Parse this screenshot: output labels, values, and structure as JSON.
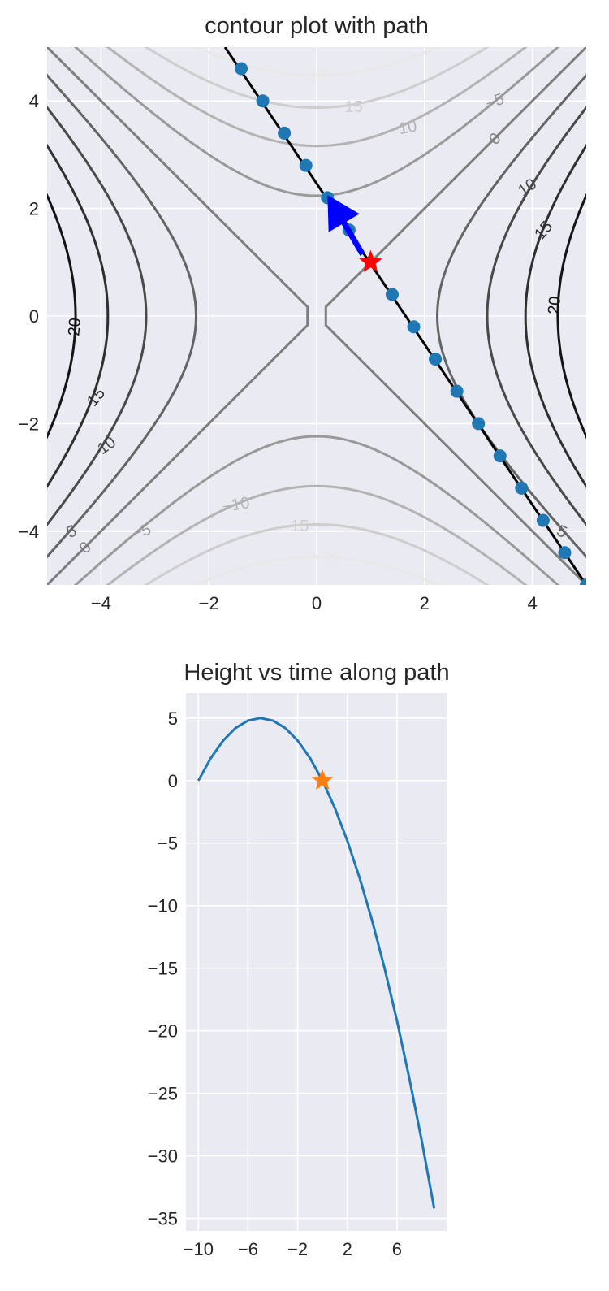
{
  "chart_data": [
    {
      "type": "contour",
      "title": "contour plot with path",
      "xlim": [
        -5,
        5
      ],
      "ylim": [
        -5,
        5
      ],
      "xticks": [
        -4,
        -2,
        0,
        2,
        4
      ],
      "yticks": [
        -4,
        -2,
        0,
        2,
        4
      ],
      "grid": true,
      "function": "z = x^2 - y^2 (saddle)",
      "levels": [
        -20,
        -15,
        -10,
        -5,
        0,
        5,
        10,
        15,
        20
      ],
      "contour_labels": [
        {
          "text": "20",
          "level": 20
        },
        {
          "text": "15",
          "level": 15
        },
        {
          "text": "10",
          "level": 10
        },
        {
          "text": "5",
          "level": 5
        },
        {
          "text": "0",
          "level": 0
        },
        {
          "text": "−5",
          "level": -5
        },
        {
          "text": "−10",
          "level": -10
        },
        {
          "text": "−15",
          "level": -15
        },
        {
          "text": "−20",
          "level": -20
        }
      ],
      "path_line": {
        "x": [
          -1.7,
          5.0
        ],
        "y": [
          5.0,
          -5.0
        ],
        "color": "#000000"
      },
      "path_points": {
        "x": [
          -1.4,
          -1.0,
          -0.6,
          -0.2,
          0.2,
          0.6,
          1.4,
          1.8,
          2.2,
          2.6,
          3.0,
          3.4,
          3.8,
          4.2,
          4.6,
          5.0
        ],
        "y": [
          4.6,
          4.0,
          3.4,
          2.8,
          2.2,
          1.6,
          0.4,
          -0.2,
          -0.8,
          -1.4,
          -2.0,
          -2.6,
          -3.2,
          -3.8,
          -4.4,
          -5.0
        ],
        "color": "#1f77b4"
      },
      "star": {
        "x": 1.0,
        "y": 1.0,
        "color": "#ff0000"
      },
      "arrow": {
        "from": [
          0.85,
          1.15
        ],
        "to": [
          0.2,
          2.25
        ],
        "color": "#0000ff"
      }
    },
    {
      "type": "line",
      "title": "Height vs time along path",
      "xlim": [
        -11,
        10
      ],
      "ylim": [
        -36,
        7
      ],
      "xticks": [
        -10,
        -6,
        -2,
        2,
        6
      ],
      "xtick_labels": [
        "−10",
        "−6",
        "−2",
        "2",
        "6"
      ],
      "yticks": [
        5,
        0,
        -5,
        -10,
        -15,
        -20,
        -25,
        -30,
        -35
      ],
      "ytick_labels": [
        "5",
        "0",
        "−5",
        "−10",
        "−15",
        "−20",
        "−25",
        "−30",
        "−35"
      ],
      "grid": true,
      "series": [
        {
          "color": "#1f77b4",
          "x": [
            -10,
            -9,
            -8,
            -7,
            -6,
            -5,
            -4,
            -3,
            -2,
            -1,
            0,
            1,
            2,
            3,
            4,
            5,
            6,
            7,
            8,
            9
          ],
          "y": [
            0,
            1.8,
            3.2,
            4.2,
            4.8,
            5.0,
            4.8,
            4.2,
            3.2,
            1.8,
            0,
            -2.2,
            -4.8,
            -7.8,
            -11.2,
            -15.0,
            -19.2,
            -23.8,
            -28.8,
            -34.2
          ]
        }
      ],
      "star": {
        "x": 0,
        "y": 0,
        "color": "#ff7f0e"
      }
    }
  ]
}
